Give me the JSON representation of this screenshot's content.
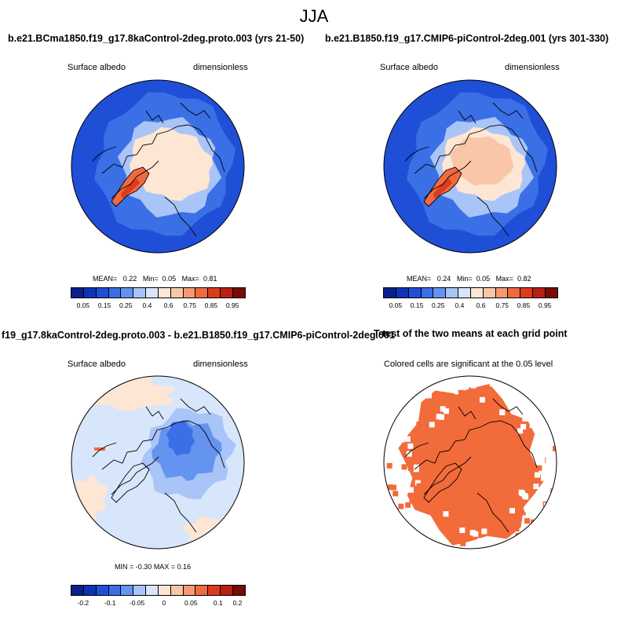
{
  "figure": {
    "season": "JJA",
    "variable": "Surface albedo",
    "units": "dimensionless"
  },
  "panels": {
    "top_left": {
      "title": "b.e21.BCma1850.f19_g17.8kaControl-2deg.proto.003 (yrs 21-50)",
      "left_label": "Surface albedo",
      "right_label": "dimensionless",
      "stats": {
        "mean_label": "MEAN=",
        "mean": "0.22",
        "min_label": "Min=",
        "min": "0.05",
        "max_label": "Max=",
        "max": "0.81"
      }
    },
    "top_right": {
      "title": "b.e21.B1850.f19_g17.CMIP6-piControl-2deg.001 (yrs 301-330)",
      "left_label": "Surface albedo",
      "right_label": "dimensionless",
      "stats": {
        "mean_label": "MEAN=",
        "mean": "0.24",
        "min_label": "Min=",
        "min": "0.05",
        "max_label": "Max=",
        "max": "0.82"
      }
    },
    "bottom_left": {
      "title": "f19_g17.8kaControl-2deg.proto.003 - b.e21.B1850.f19_g17.CMIP6-piControl-2deg.001",
      "left_label": "Surface albedo",
      "right_label": "dimensionless",
      "stats": {
        "min_label": "MIN =",
        "min": "-0.30",
        "max_label": "MAX =",
        "max": "0.16"
      }
    },
    "bottom_right": {
      "title": "T-test of the two means at each grid point",
      "subtitle": "Colored cells are significant at the 0.05 level"
    }
  },
  "colorbars": {
    "albedo": {
      "colors": [
        "#0a1f8c",
        "#0d33b8",
        "#1f4fd6",
        "#3a6fe6",
        "#6493f0",
        "#a9c4f7",
        "#d8e6fb",
        "#fde6d4",
        "#fac6a8",
        "#f59a74",
        "#ef6a3f",
        "#dc3c1c",
        "#b52012",
        "#7a0a06"
      ],
      "ticks": [
        "0.05",
        "0.15",
        "0.25",
        "0.4",
        "0.6",
        "0.75",
        "0.85",
        "0.95"
      ]
    },
    "difference": {
      "colors": [
        "#0a1f8c",
        "#0d33b8",
        "#1f4fd6",
        "#3a6fe6",
        "#6493f0",
        "#a9c4f7",
        "#d8e6fb",
        "#fde6d4",
        "#fac6a8",
        "#f59a74",
        "#ef6a3f",
        "#dc3c1c",
        "#b52012",
        "#7a0a06"
      ],
      "ticks": [
        "-0.2",
        "-0.1",
        "-0.05",
        "0",
        "0.05",
        "0.1",
        "0.2"
      ]
    }
  },
  "map_colors": {
    "ocean": "#1f4fd6",
    "ocean_light": "#3a6fe6",
    "arctic_pale": "#fde6d4",
    "arctic_peach": "#fac6a8",
    "greenland": "#ef6a3f",
    "greenland_core": "#dc3c1c",
    "diff_background": "#d8e6fb",
    "diff_blue": "#6493f0",
    "diff_deep": "#3a6fe6",
    "diff_warm": "#fde6d4",
    "significance": "#f26b3a"
  }
}
